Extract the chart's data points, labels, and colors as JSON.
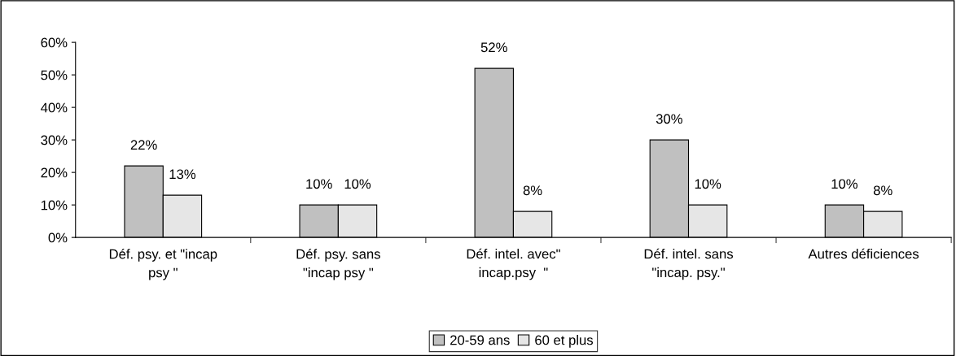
{
  "chart_data": {
    "type": "bar",
    "categories": [
      "Déf. psy. et \"incap\npsy \"",
      "Déf. psy. sans\n\"incap psy \"",
      "Déf. intel. avec\"\nincap.psy  \"",
      "Déf. intel. sans\n\"incap. psy.\"",
      "Autres déficiences"
    ],
    "series": [
      {
        "name": "20-59 ans",
        "color": "#c0c0c0",
        "values": [
          22,
          10,
          52,
          30,
          10
        ],
        "value_labels": [
          "22%",
          "10%",
          "52%",
          "30%",
          "10%"
        ]
      },
      {
        "name": "60 et plus",
        "color": "#e6e6e6",
        "values": [
          13,
          10,
          8,
          10,
          8
        ],
        "value_labels": [
          "13%",
          "10%",
          "8%",
          "10%",
          "8%"
        ]
      }
    ],
    "ylim": [
      0,
      60
    ],
    "yticks": [
      {
        "value": 0,
        "label": "0%"
      },
      {
        "value": 10,
        "label": "10%"
      },
      {
        "value": 20,
        "label": "20%"
      },
      {
        "value": 30,
        "label": "30%"
      },
      {
        "value": 40,
        "label": "40%"
      },
      {
        "value": 50,
        "label": "50%"
      },
      {
        "value": 60,
        "label": "60%"
      }
    ],
    "grid": false,
    "legend": "bottom"
  }
}
